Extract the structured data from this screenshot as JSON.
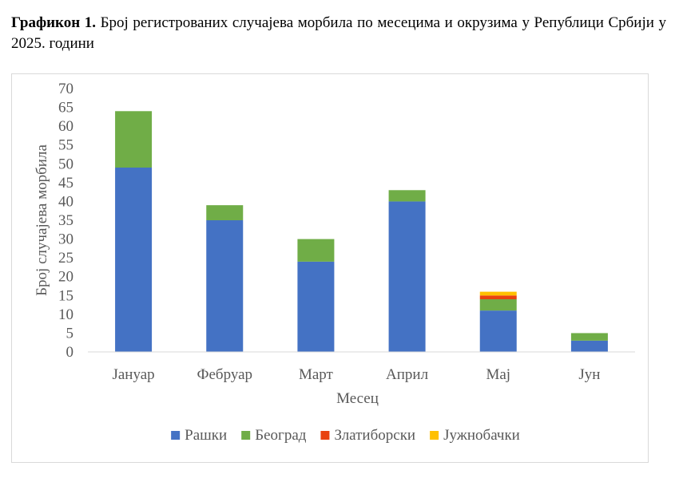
{
  "caption": {
    "label": "Графикон 1.",
    "text": "Број регистрованих случајева морбила по месецима и окрузима у Републици Србији у 2025. години"
  },
  "chart_data": {
    "type": "bar",
    "stacked": true,
    "categories": [
      "Јануар",
      "Фебруар",
      "Март",
      "Април",
      "Мај",
      "Јун"
    ],
    "series": [
      {
        "name": "Рашки",
        "color": "#4472c4",
        "values": [
          49,
          35,
          24,
          40,
          11,
          3
        ]
      },
      {
        "name": "Београд",
        "color": "#70ad47",
        "values": [
          15,
          4,
          6,
          3,
          3,
          2
        ]
      },
      {
        "name": "Златиборски",
        "color": "#e8420f",
        "values": [
          0,
          0,
          0,
          0,
          1,
          0
        ]
      },
      {
        "name": "Јужнобачки",
        "color": "#ffc000",
        "values": [
          0,
          0,
          0,
          0,
          1,
          0
        ]
      }
    ],
    "ylim": [
      0,
      70
    ],
    "yticks": [
      0,
      5,
      10,
      15,
      20,
      25,
      30,
      35,
      40,
      45,
      50,
      55,
      60,
      65,
      70
    ],
    "xlabel": "Месец",
    "ylabel": "Број случајева морбила",
    "grid": false,
    "legend": "bottom"
  }
}
